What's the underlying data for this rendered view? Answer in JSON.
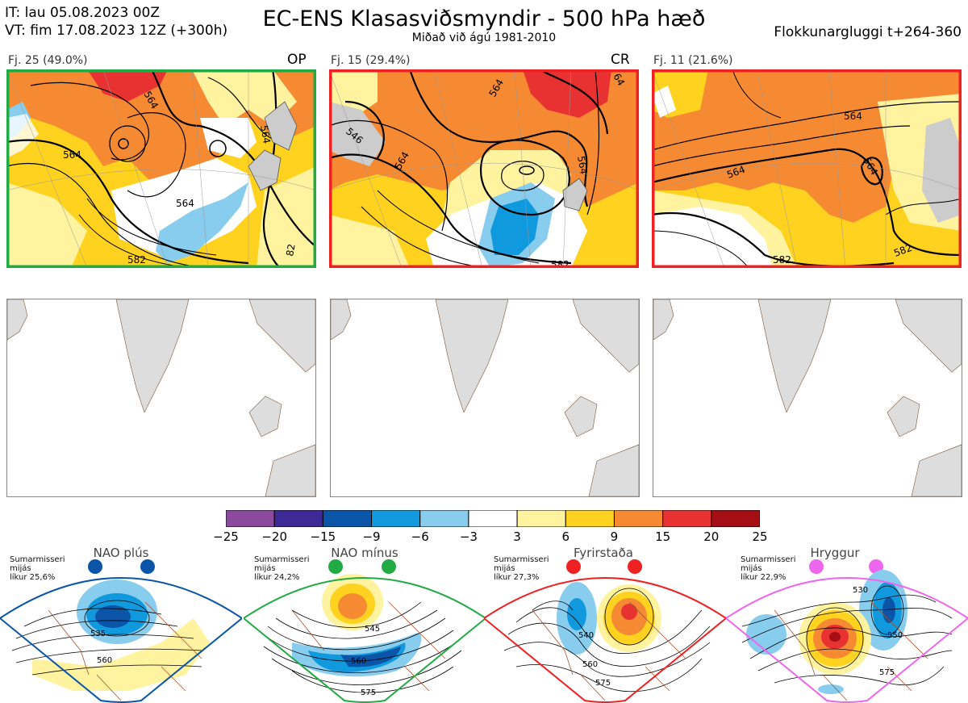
{
  "header": {
    "it_line": "IT: lau 05.08.2023 00Z",
    "vt_line": "VT: fim 17.08.2023 12Z  (+300h)",
    "title": "EC-ENS Klasasviðsmyndir - 500 hPa hæð",
    "subtitle": "Miðað við ágú 1981-2010",
    "window": "Flokkunargluggi t+264-360"
  },
  "panels": [
    {
      "label": "Fj. 25 (49.0%)",
      "tag": "OP",
      "border_color": "#22aa44",
      "contour_labels": [
        "564",
        "564",
        "564",
        "582",
        "564",
        "82"
      ]
    },
    {
      "label": "Fj. 15 (29.4%)",
      "tag": "CR",
      "border_color": "#ee2222",
      "contour_labels": [
        "564",
        "546",
        "564",
        "564",
        "582",
        "64"
      ]
    },
    {
      "label": "Fj. 11 (21.6%)",
      "tag": "",
      "border_color": "#ee2222",
      "contour_labels": [
        "564",
        "564",
        "564",
        "582",
        "582"
      ]
    }
  ],
  "colorbar": {
    "ticks": [
      "−25",
      "−20",
      "−15",
      "−9",
      "−6",
      "−3",
      "3",
      "6",
      "9",
      "15",
      "20",
      "25"
    ],
    "colors": [
      "#8b4a9e",
      "#3d2a96",
      "#0b55a8",
      "#1199dd",
      "#88ccee",
      "#ffffff",
      "#fff3a0",
      "#ffd21f",
      "#f58a32",
      "#e83232",
      "#a40e14"
    ]
  },
  "regimes": [
    {
      "title": "NAO plús",
      "note": [
        "Sumarmisseri",
        "mijás",
        "líkur 25,6%"
      ],
      "color": "#0b55a8",
      "contour_labels": [
        "535",
        "560"
      ]
    },
    {
      "title": "NAO mínus",
      "note": [
        "Sumarmisseri",
        "mijás",
        "líkur 24,2%"
      ],
      "color": "#22aa44",
      "contour_labels": [
        "545",
        "560",
        "575"
      ]
    },
    {
      "title": "Fyrirstaða",
      "note": [
        "Sumarmisseri",
        "mijás",
        "líkur 27,3%"
      ],
      "color": "#ee2222",
      "contour_labels": [
        "540",
        "560",
        "575"
      ]
    },
    {
      "title": "Hryggur",
      "note": [
        "Sumarmisseri",
        "mijás",
        "líkur 22,9%"
      ],
      "color": "#ee66ee",
      "contour_labels": [
        "530",
        "550",
        "575"
      ]
    }
  ]
}
